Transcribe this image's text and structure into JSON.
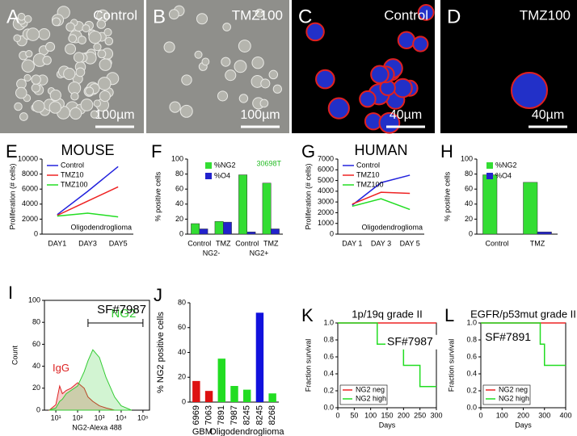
{
  "images": [
    {
      "letter": "A",
      "label": "Control",
      "scale": "100µm"
    },
    {
      "letter": "B",
      "label": "TMZ100",
      "scale": "100µm"
    },
    {
      "letter": "C",
      "label": "Control",
      "scale": "40µm"
    },
    {
      "letter": "D",
      "label": "TMZ100",
      "scale": "40µm"
    }
  ],
  "chart_data": [
    {
      "type": "line",
      "letter": "E",
      "title": "MOUSE",
      "ylabel": "Proliferation (# cells)",
      "note": "Oligodendroglioma",
      "categories": [
        "DAY1",
        "DAY3",
        "DAY5"
      ],
      "series": [
        {
          "name": "Control",
          "color": "#2222dd",
          "values": [
            2600,
            5700,
            9000
          ]
        },
        {
          "name": "TMZ10",
          "color": "#ee2222",
          "values": [
            2500,
            4400,
            6300
          ]
        },
        {
          "name": "TMZ100",
          "color": "#22dd22",
          "values": [
            2400,
            2800,
            2300
          ]
        }
      ],
      "ylim": [
        0,
        10000
      ],
      "yticks": [
        0,
        2000,
        4000,
        6000,
        8000,
        10000
      ]
    },
    {
      "type": "bar",
      "letter": "F",
      "ylabel": "% positive cells",
      "note": "30698T",
      "note_color": "#22bb22",
      "categories": [
        "Control",
        "TMZ",
        "Control",
        "TMZ"
      ],
      "groups": [
        "NG2-",
        "NG2+"
      ],
      "series": [
        {
          "name": "%NG2",
          "color": "#33dd33",
          "values": [
            14,
            17,
            79,
            68
          ]
        },
        {
          "name": "%O4",
          "color": "#2222cc",
          "values": [
            7,
            16,
            3,
            7
          ]
        }
      ],
      "ylim": [
        0,
        100
      ],
      "yticks": [
        0,
        20,
        40,
        60,
        80,
        100
      ]
    },
    {
      "type": "line",
      "letter": "G",
      "title": "HUMAN",
      "ylabel": "Proliferation (# cells)",
      "note": "Oligodendroglioma",
      "categories": [
        "DAY 1",
        "DAY 3",
        "DAY 5"
      ],
      "series": [
        {
          "name": "Control",
          "color": "#2222dd",
          "values": [
            2700,
            4800,
            5500
          ]
        },
        {
          "name": "TMZ10",
          "color": "#ee2222",
          "values": [
            2800,
            3900,
            3800
          ]
        },
        {
          "name": "TMZ100",
          "color": "#22dd22",
          "values": [
            2600,
            3300,
            2300
          ]
        }
      ],
      "ylim": [
        0,
        7000
      ],
      "yticks": [
        0,
        1000,
        2000,
        3000,
        4000,
        5000,
        6000,
        7000
      ]
    },
    {
      "type": "bar",
      "letter": "H",
      "ylabel": "% positive cells",
      "categories": [
        "Control",
        "TMZ"
      ],
      "series": [
        {
          "name": "%NG2",
          "color": "#33dd33",
          "values": [
            79,
            69
          ]
        },
        {
          "name": "%O4",
          "color": "#2222cc",
          "values": [
            0,
            3
          ]
        }
      ],
      "ylim": [
        0,
        100
      ],
      "yticks": [
        0,
        20,
        40,
        60,
        80,
        100
      ]
    },
    {
      "type": "area",
      "letter": "I",
      "ylabel": "Count",
      "xlabel": "NG2-Alexa 488",
      "note": "SF#7987",
      "xlog": true,
      "xlim": [
        3,
        200000
      ],
      "xticks": [
        {
          "value": 10,
          "label": "10¹"
        },
        {
          "value": 100,
          "label": "10²"
        },
        {
          "value": 1000,
          "label": "10³"
        },
        {
          "value": 10000,
          "label": "10⁴"
        },
        {
          "value": 100000,
          "label": "10⁵"
        }
      ],
      "ylim": [
        0,
        100
      ],
      "yticks": [
        0,
        20,
        40,
        60,
        80,
        100
      ],
      "gate": [
        300,
        100000
      ],
      "series": [
        {
          "name": "IgG",
          "color": "#dd2222",
          "x": [
            5,
            10,
            15,
            20,
            30,
            50,
            100,
            200,
            300,
            500,
            1000,
            2000,
            5000,
            10000,
            30000
          ],
          "values": [
            0,
            5,
            22,
            15,
            18,
            20,
            25,
            20,
            12,
            8,
            4,
            2,
            0,
            0,
            0
          ]
        },
        {
          "name": "NG2",
          "color": "#33cc33",
          "x": [
            5,
            10,
            15,
            20,
            30,
            50,
            100,
            200,
            300,
            500,
            1000,
            2000,
            5000,
            10000,
            30000
          ],
          "values": [
            0,
            2,
            8,
            10,
            15,
            18,
            22,
            35,
            45,
            55,
            48,
            30,
            12,
            4,
            0
          ]
        }
      ]
    },
    {
      "type": "bar",
      "letter": "J",
      "ylabel": "% NG2 positive cells",
      "categories": [
        "6969",
        "7063",
        "7891",
        "7987",
        "8245",
        "8245",
        "8268"
      ],
      "groups": [
        "GBM",
        "Oligodendroglioma"
      ],
      "values": [
        17,
        9,
        35,
        13,
        10,
        72,
        7
      ],
      "colors": [
        "#dd1111",
        "#dd1111",
        "#22dd22",
        "#22dd22",
        "#22dd22",
        "#1111dd",
        "#22dd22"
      ],
      "ylim": [
        0,
        80
      ],
      "yticks": [
        0,
        20,
        40,
        60,
        80
      ]
    },
    {
      "type": "step",
      "letter": "K",
      "title": "1p/19q grade II",
      "note": "SF#7987",
      "ylabel": "Fraction survival",
      "xlabel": "Days",
      "xlim": [
        0,
        300
      ],
      "xticks": [
        0,
        50,
        100,
        150,
        200,
        250,
        300
      ],
      "ylim": [
        0,
        1
      ],
      "yticks": [
        {
          "value": 0,
          "label": "0.0"
        },
        {
          "value": 0.2,
          "label": "0.2"
        },
        {
          "value": 0.4,
          "label": "0.4"
        },
        {
          "value": 0.6,
          "label": "0.6"
        },
        {
          "value": 0.8,
          "label": "0.8"
        },
        {
          "value": 1,
          "label": "1.0"
        }
      ],
      "series": [
        {
          "name": "NG2 neg",
          "color": "#ee2222",
          "x": [
            0,
            300
          ],
          "values": [
            1,
            1
          ]
        },
        {
          "name": "NG2 high",
          "color": "#22dd22",
          "x": [
            0,
            120,
            200,
            250,
            300
          ],
          "values": [
            1,
            0.75,
            0.5,
            0.25,
            0.25
          ]
        }
      ]
    },
    {
      "type": "step",
      "letter": "L",
      "title": "EGFR/p53mut grade II",
      "note": "SF#7891",
      "ylabel": "Fraction survival",
      "xlabel": "Days",
      "xlim": [
        0,
        400
      ],
      "xticks": [
        0,
        100,
        200,
        300,
        400
      ],
      "ylim": [
        0,
        1
      ],
      "yticks": [
        {
          "value": 0,
          "label": "0.0"
        },
        {
          "value": 0.2,
          "label": "0.2"
        },
        {
          "value": 0.4,
          "label": "0.4"
        },
        {
          "value": 0.6,
          "label": "0.6"
        },
        {
          "value": 0.8,
          "label": "0.8"
        },
        {
          "value": 1,
          "label": "1.0"
        }
      ],
      "series": [
        {
          "name": "NG2 neg",
          "color": "#ee2222",
          "x": [
            0,
            400
          ],
          "values": [
            1,
            1
          ]
        },
        {
          "name": "NG2 high",
          "color": "#22dd22",
          "x": [
            0,
            280,
            300,
            400
          ],
          "values": [
            1,
            0.75,
            0.5,
            0.5
          ]
        }
      ]
    }
  ]
}
